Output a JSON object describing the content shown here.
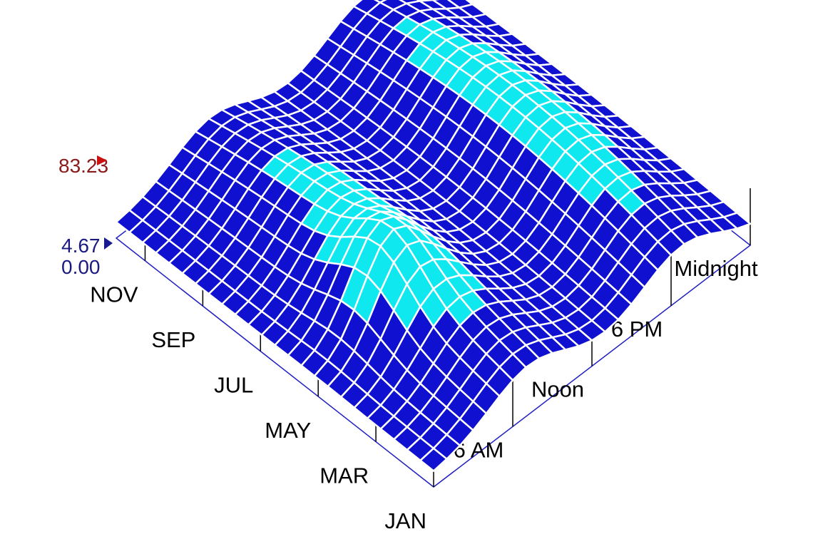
{
  "chart_data": {
    "type": "surface3d",
    "x_axis": {
      "ticks": [
        "JAN",
        "MAR",
        "MAY",
        "JUL",
        "SEP",
        "NOV"
      ],
      "tick_months": [
        1,
        3,
        5,
        7,
        9,
        11
      ],
      "range_months": [
        1,
        12
      ]
    },
    "y_axis": {
      "ticks": [
        "6 AM",
        "Noon",
        "6 PM",
        "Midnight"
      ],
      "tick_hours": [
        6,
        12,
        18,
        24
      ],
      "range_hours": [
        0,
        24
      ]
    },
    "z_axis": {
      "min_label": "0.00",
      "mid_label": "4.67",
      "max_label": "83.23",
      "min": 0,
      "max": 83.23,
      "mid_color": "#1a1a80",
      "max_color": "#8b1a1a"
    },
    "color_bands": [
      {
        "color": "#1010d0"
      },
      {
        "color": "#10e8f0"
      },
      {
        "color": "#ff1010"
      }
    ],
    "grid_color": "#ffffff",
    "frame_color": "#2020c0",
    "grid_resolution": {
      "months": 24,
      "hours": 24
    }
  }
}
